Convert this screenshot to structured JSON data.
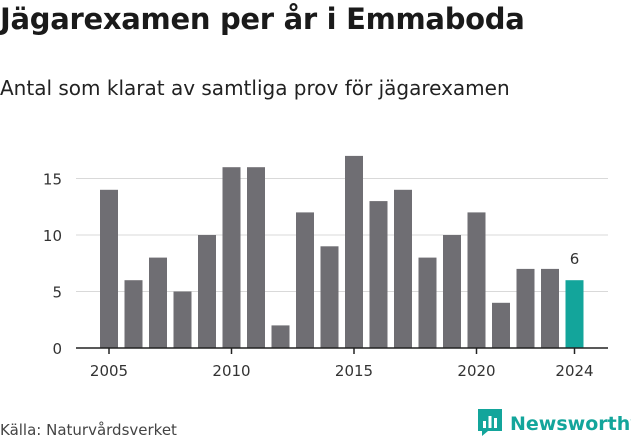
{
  "header": {
    "title": "Jägarexamen per år i Emmaboda",
    "subtitle": "Antal som klarat av samtliga prov för jägarexamen"
  },
  "footer": {
    "source": "Källa: Naturvårdsverket",
    "brand": "Newsworthy",
    "brand_icon": "bar-chart-icon"
  },
  "colors": {
    "bar": "#6f6e73",
    "highlight": "#13a59b",
    "grid": "#d9d9d9",
    "axis": "#222222",
    "text": "#333333"
  },
  "chart_data": {
    "type": "bar",
    "title": "Jägarexamen per år i Emmaboda",
    "subtitle": "Antal som klarat av samtliga prov för jägarexamen",
    "x": [
      2005,
      2006,
      2007,
      2008,
      2009,
      2010,
      2011,
      2012,
      2013,
      2014,
      2015,
      2016,
      2017,
      2018,
      2019,
      2020,
      2021,
      2022,
      2023,
      2024
    ],
    "values": [
      14,
      6,
      8,
      5,
      10,
      16,
      16,
      2,
      12,
      9,
      17,
      13,
      14,
      8,
      10,
      12,
      4,
      7,
      7,
      6
    ],
    "x_ticks": [
      "2005",
      "2010",
      "2015",
      "2020",
      "2024"
    ],
    "y_ticks": [
      "0",
      "5",
      "10",
      "15"
    ],
    "ylim": [
      0,
      17
    ],
    "grid": true,
    "highlight": {
      "year": 2024,
      "label": "6"
    }
  }
}
